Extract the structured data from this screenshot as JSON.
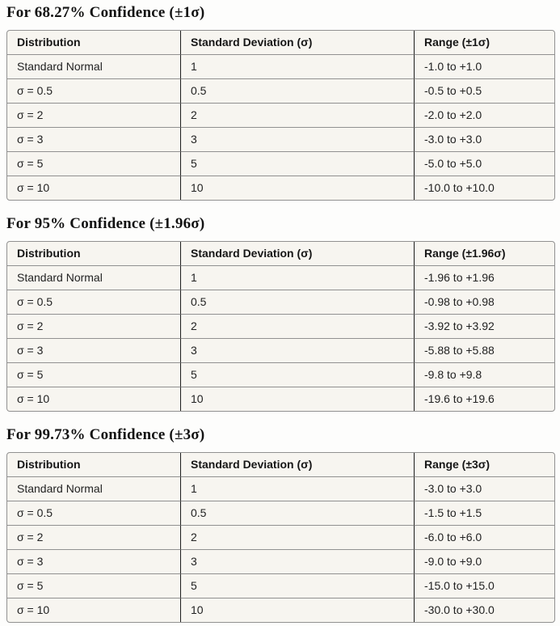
{
  "colors": {
    "page_background": "#fdfdfc",
    "cell_background": "#f7f5f0",
    "outer_and_row_border": "#919191",
    "column_border": "#1d1d1d",
    "text": "#1f1f1f"
  },
  "sections": [
    {
      "title": "For 68.27% Confidence (±1σ)",
      "columns": [
        "Distribution",
        "Standard Deviation (σ)",
        "Range (±1σ)"
      ],
      "rows": [
        [
          "Standard Normal",
          "1",
          "-1.0 to +1.0"
        ],
        [
          "σ = 0.5",
          "0.5",
          "-0.5 to +0.5"
        ],
        [
          "σ = 2",
          "2",
          "-2.0 to +2.0"
        ],
        [
          "σ = 3",
          "3",
          "-3.0 to +3.0"
        ],
        [
          "σ = 5",
          "5",
          "-5.0 to +5.0"
        ],
        [
          "σ = 10",
          "10",
          "-10.0 to +10.0"
        ]
      ]
    },
    {
      "title": "For 95% Confidence (±1.96σ)",
      "columns": [
        "Distribution",
        "Standard Deviation (σ)",
        "Range (±1.96σ)"
      ],
      "rows": [
        [
          "Standard Normal",
          "1",
          "-1.96 to +1.96"
        ],
        [
          "σ = 0.5",
          "0.5",
          "-0.98 to +0.98"
        ],
        [
          "σ = 2",
          "2",
          "-3.92 to +3.92"
        ],
        [
          "σ = 3",
          "3",
          "-5.88 to +5.88"
        ],
        [
          "σ = 5",
          "5",
          "-9.8 to +9.8"
        ],
        [
          "σ = 10",
          "10",
          "-19.6 to +19.6"
        ]
      ]
    },
    {
      "title": "For 99.73% Confidence (±3σ)",
      "columns": [
        "Distribution",
        "Standard Deviation (σ)",
        "Range (±3σ)"
      ],
      "rows": [
        [
          "Standard Normal",
          "1",
          "-3.0 to +3.0"
        ],
        [
          "σ = 0.5",
          "0.5",
          "-1.5 to +1.5"
        ],
        [
          "σ = 2",
          "2",
          "-6.0 to +6.0"
        ],
        [
          "σ = 3",
          "3",
          "-9.0 to +9.0"
        ],
        [
          "σ = 5",
          "5",
          "-15.0 to +15.0"
        ],
        [
          "σ = 10",
          "10",
          "-30.0 to +30.0"
        ]
      ]
    }
  ]
}
